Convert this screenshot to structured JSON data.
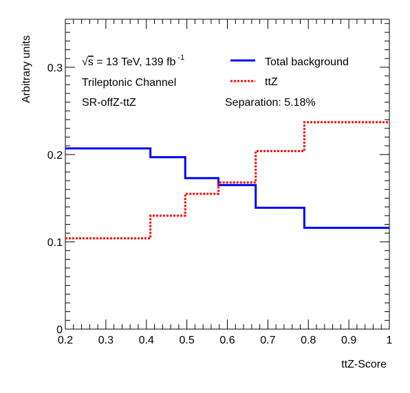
{
  "chart_data": {
    "type": "line",
    "step": true,
    "xlabel": "ttZ-Score",
    "ylabel": "Arbitrary units",
    "xlim": [
      0.2,
      1.0
    ],
    "ylim": [
      0,
      0.355
    ],
    "xticks": [
      0.2,
      0.3,
      0.4,
      0.5,
      0.6,
      0.7,
      0.8,
      0.9,
      1
    ],
    "xtick_labels": [
      "0.2",
      "0.3",
      "0.4",
      "0.5",
      "0.6",
      "0.7",
      "0.8",
      "0.9",
      "1"
    ],
    "yticks": [
      0,
      0.1,
      0.2,
      0.3
    ],
    "ytick_labels": [
      "0",
      "0.1",
      "0.2",
      "0.3"
    ],
    "bin_edges": [
      0.2,
      0.41,
      0.496,
      0.578,
      0.67,
      0.79,
      1.0
    ],
    "series": [
      {
        "name": "Total background",
        "color": "#0000ff",
        "style": "solid",
        "values": [
          0.207,
          0.197,
          0.173,
          0.165,
          0.139,
          0.116
        ]
      },
      {
        "name": "ttZ",
        "color": "#ff0000",
        "style": "dotted",
        "values": [
          0.104,
          0.13,
          0.155,
          0.168,
          0.204,
          0.237
        ]
      }
    ],
    "annotations": {
      "energy_prefix": "√",
      "energy_s": "s",
      "energy_rest": " = 13 TeV, 139 fb",
      "energy_exp": "-1",
      "channel": "Trileptonic Channel",
      "region": "SR-offZ-ttZ",
      "separation": "Separation: 5.18%"
    },
    "legend_position": "top-right",
    "grid": false
  }
}
